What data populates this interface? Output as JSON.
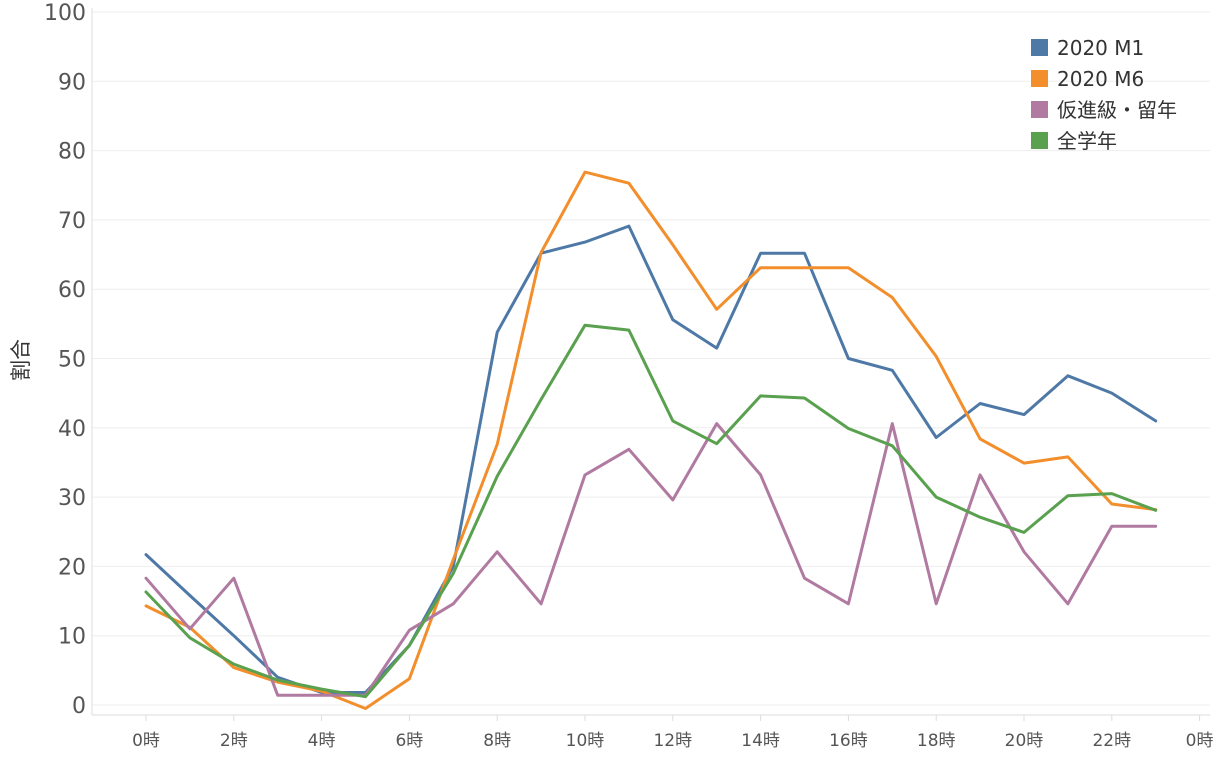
{
  "chart_data": {
    "type": "line",
    "title": "",
    "xlabel": "",
    "ylabel": "割合",
    "ylim": [
      0,
      100
    ],
    "yticks": [
      0,
      10,
      20,
      30,
      40,
      50,
      60,
      70,
      80,
      90,
      100
    ],
    "x": [
      0,
      1,
      2,
      3,
      4,
      5,
      6,
      7,
      8,
      9,
      10,
      11,
      12,
      13,
      14,
      15,
      16,
      17,
      18,
      19,
      20,
      21,
      22,
      23
    ],
    "xticks": [
      {
        "value": 0,
        "label": "0時"
      },
      {
        "value": 2,
        "label": "2時"
      },
      {
        "value": 4,
        "label": "4時"
      },
      {
        "value": 6,
        "label": "6時"
      },
      {
        "value": 8,
        "label": "8時"
      },
      {
        "value": 10,
        "label": "10時"
      },
      {
        "value": 12,
        "label": "12時"
      },
      {
        "value": 14,
        "label": "14時"
      },
      {
        "value": 16,
        "label": "16時"
      },
      {
        "value": 18,
        "label": "18時"
      },
      {
        "value": 20,
        "label": "20時"
      },
      {
        "value": 22,
        "label": "22時"
      },
      {
        "value": 24,
        "label": "0時"
      }
    ],
    "grid": true,
    "legend_position": "top-right",
    "series": [
      {
        "name": "2020 M1",
        "color": "#4e79a7",
        "values": [
          21.7,
          15.8,
          10.0,
          4.0,
          1.8,
          1.8,
          8.6,
          20.0,
          53.8,
          65.2,
          66.8,
          69.1,
          55.6,
          51.5,
          65.2,
          65.2,
          50.0,
          48.3,
          38.6,
          43.5,
          41.9,
          47.5,
          45.0,
          41.0
        ]
      },
      {
        "name": "2020 M6",
        "color": "#f28e2b",
        "values": [
          14.3,
          11.2,
          5.4,
          3.3,
          2.0,
          -0.5,
          3.8,
          21.0,
          37.6,
          65.3,
          76.9,
          75.3,
          66.4,
          57.1,
          63.1,
          63.1,
          63.1,
          58.8,
          50.3,
          38.4,
          34.9,
          35.8,
          29.0,
          28.2
        ]
      },
      {
        "name": "仮進級・留年",
        "color": "#b07aa1",
        "values": [
          18.3,
          11.0,
          18.3,
          1.4,
          1.4,
          1.4,
          10.8,
          14.6,
          22.1,
          14.6,
          33.2,
          36.9,
          29.6,
          40.6,
          33.2,
          18.3,
          14.6,
          40.6,
          14.6,
          33.2,
          22.1,
          14.6,
          25.8,
          25.8
        ]
      },
      {
        "name": "全学年",
        "color": "#59a14f",
        "values": [
          16.3,
          9.7,
          5.9,
          3.6,
          2.3,
          1.2,
          8.6,
          19.0,
          33.0,
          44.1,
          54.8,
          54.1,
          41.0,
          37.7,
          44.6,
          44.3,
          39.9,
          37.4,
          30.0,
          27.1,
          24.9,
          30.2,
          30.5,
          28.1
        ]
      }
    ]
  }
}
